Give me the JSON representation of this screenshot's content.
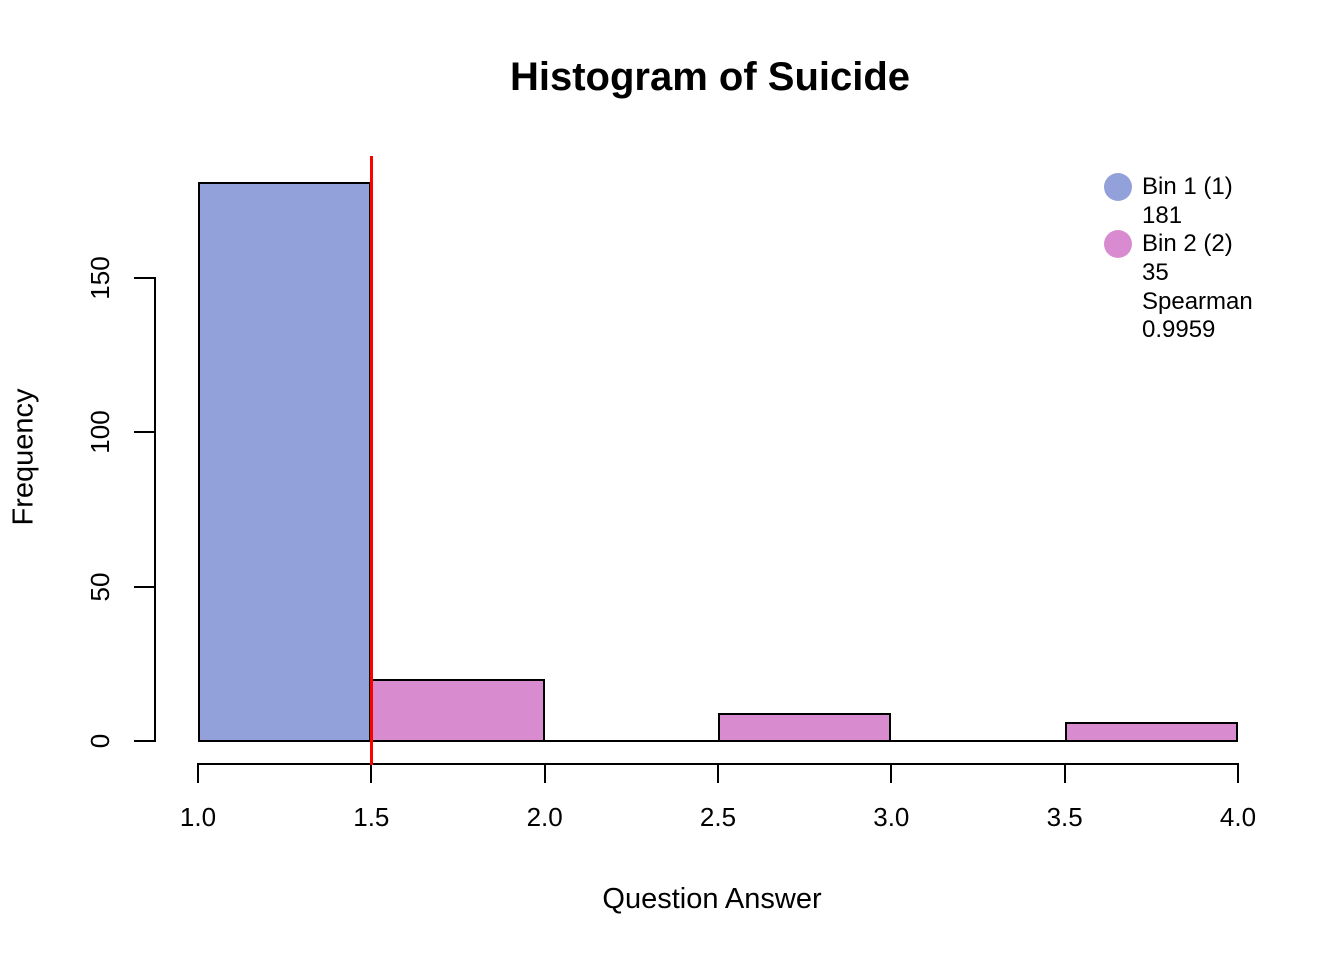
{
  "chart_data": {
    "type": "bar",
    "title": "Histogram of Suicide",
    "xlabel": "Question Answer",
    "ylabel": "Frequency",
    "xlim": [
      1.0,
      4.0
    ],
    "ylim": [
      0,
      150
    ],
    "grid": false,
    "x_ticks": [
      1.0,
      1.5,
      2.0,
      2.5,
      3.0,
      3.5,
      4.0
    ],
    "x_tick_labels": [
      "1.0",
      "1.5",
      "2.0",
      "2.5",
      "3.0",
      "3.5",
      "4.0"
    ],
    "y_ticks": [
      0,
      50,
      100,
      150
    ],
    "y_tick_labels": [
      "0",
      "50",
      "100",
      "150"
    ],
    "bins": [
      {
        "x0": 1.0,
        "x1": 1.5,
        "count": 181,
        "series": "Bin 1"
      },
      {
        "x0": 1.5,
        "x1": 2.0,
        "count": 20,
        "series": "Bin 2"
      },
      {
        "x0": 2.0,
        "x1": 2.5,
        "count": 0,
        "series": "Bin 2"
      },
      {
        "x0": 2.5,
        "x1": 3.0,
        "count": 9,
        "series": "Bin 2"
      },
      {
        "x0": 3.0,
        "x1": 3.5,
        "count": 0,
        "series": "Bin 2"
      },
      {
        "x0": 3.5,
        "x1": 4.0,
        "count": 6,
        "series": "Bin 2"
      }
    ],
    "series_colors": {
      "Bin 1": "#93a1da",
      "Bin 2": "#d88ccf"
    },
    "vline": {
      "x": 1.5,
      "color": "#ff0000"
    },
    "legend": {
      "position": "top-right",
      "entries": [
        {
          "marker_color": "#93a1da",
          "lines": [
            "Bin 1 (1)",
            "181"
          ]
        },
        {
          "marker_color": "#d88ccf",
          "lines": [
            "Bin 2 (2)",
            "35",
            "Spearman",
            "0.9959"
          ]
        }
      ]
    }
  },
  "colors": {
    "bin1_fill": "#93a1da",
    "bin2_fill": "#d88ccf",
    "marker_line": "#ff0000",
    "axis": "#000000",
    "background": "#ffffff"
  }
}
